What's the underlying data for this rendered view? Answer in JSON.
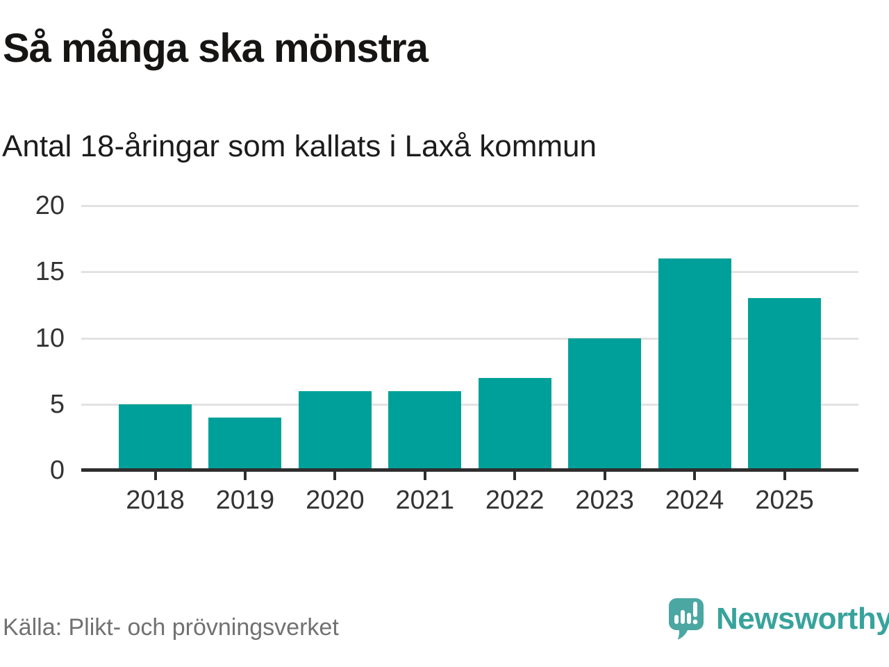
{
  "header": {
    "title": "Så många ska mönstra",
    "subtitle": "Antal 18-åringar som kallats i Laxå kommun"
  },
  "chart_data": {
    "type": "bar",
    "title": "Så många ska mönstra",
    "subtitle": "Antal 18-åringar som kallats i Laxå kommun",
    "categories": [
      "2018",
      "2019",
      "2020",
      "2021",
      "2022",
      "2023",
      "2024",
      "2025"
    ],
    "values": [
      5,
      4,
      6,
      6,
      7,
      10,
      16,
      13
    ],
    "xlabel": "",
    "ylabel": "",
    "ylim": [
      0,
      20
    ],
    "yticks": [
      0,
      5,
      10,
      15,
      20
    ],
    "grid": true,
    "legend": false
  },
  "footer": {
    "source": "Källa: Plikt- och prövningsverket",
    "brand": "Newsworthy"
  },
  "colors": {
    "bar": "#00a09a",
    "grid": "#e2e2e2",
    "axis": "#2e2e2e",
    "tick": "#2e2e2e",
    "title": "#161514",
    "subtitle": "#1c1c1c",
    "axis_text": "#333333",
    "source_text": "#717171",
    "brand_text": "#38a39c",
    "logo_bubble": "#4ba7a2",
    "logo_glyph": "#ffffff"
  }
}
